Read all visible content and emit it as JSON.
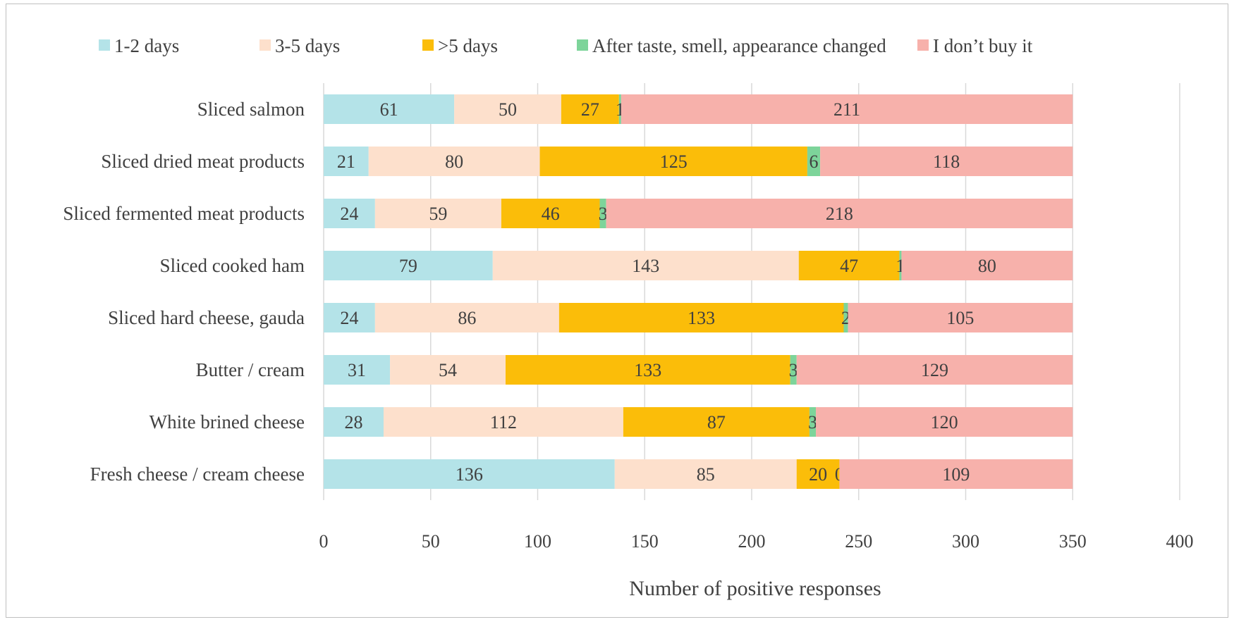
{
  "chart_data": {
    "type": "bar",
    "orientation": "horizontal",
    "stacked": true,
    "title": "",
    "xlabel": "Number of positive responses",
    "ylabel": "",
    "xlim": [
      0,
      400
    ],
    "xticks": [
      0,
      50,
      100,
      150,
      200,
      250,
      300,
      350,
      400
    ],
    "grid": true,
    "legend_position": "top",
    "categories": [
      "Sliced salmon",
      "Sliced dried meat products",
      "Sliced fermented meat products",
      "Sliced cooked ham",
      "Sliced hard cheese, gauda",
      "Butter / cream",
      "White brined cheese",
      "Fresh cheese / cream cheese"
    ],
    "series": [
      {
        "name": "1-2 days",
        "color": "#b4e3e8",
        "values": [
          61,
          21,
          24,
          79,
          24,
          31,
          28,
          136
        ]
      },
      {
        "name": "3-5 days",
        "color": "#fde0cc",
        "values": [
          50,
          80,
          59,
          143,
          86,
          54,
          112,
          85
        ]
      },
      {
        "name": ">5 days",
        "color": "#fbbd09",
        "values": [
          27,
          125,
          46,
          47,
          133,
          133,
          87,
          20
        ]
      },
      {
        "name": "After taste, smell, appearance changed",
        "color": "#7dd49a",
        "values": [
          1,
          6,
          3,
          1,
          2,
          3,
          3,
          0
        ]
      },
      {
        "name": "I don’t buy it",
        "color": "#f7b1ab",
        "values": [
          211,
          118,
          218,
          80,
          105,
          129,
          120,
          109
        ]
      }
    ]
  }
}
